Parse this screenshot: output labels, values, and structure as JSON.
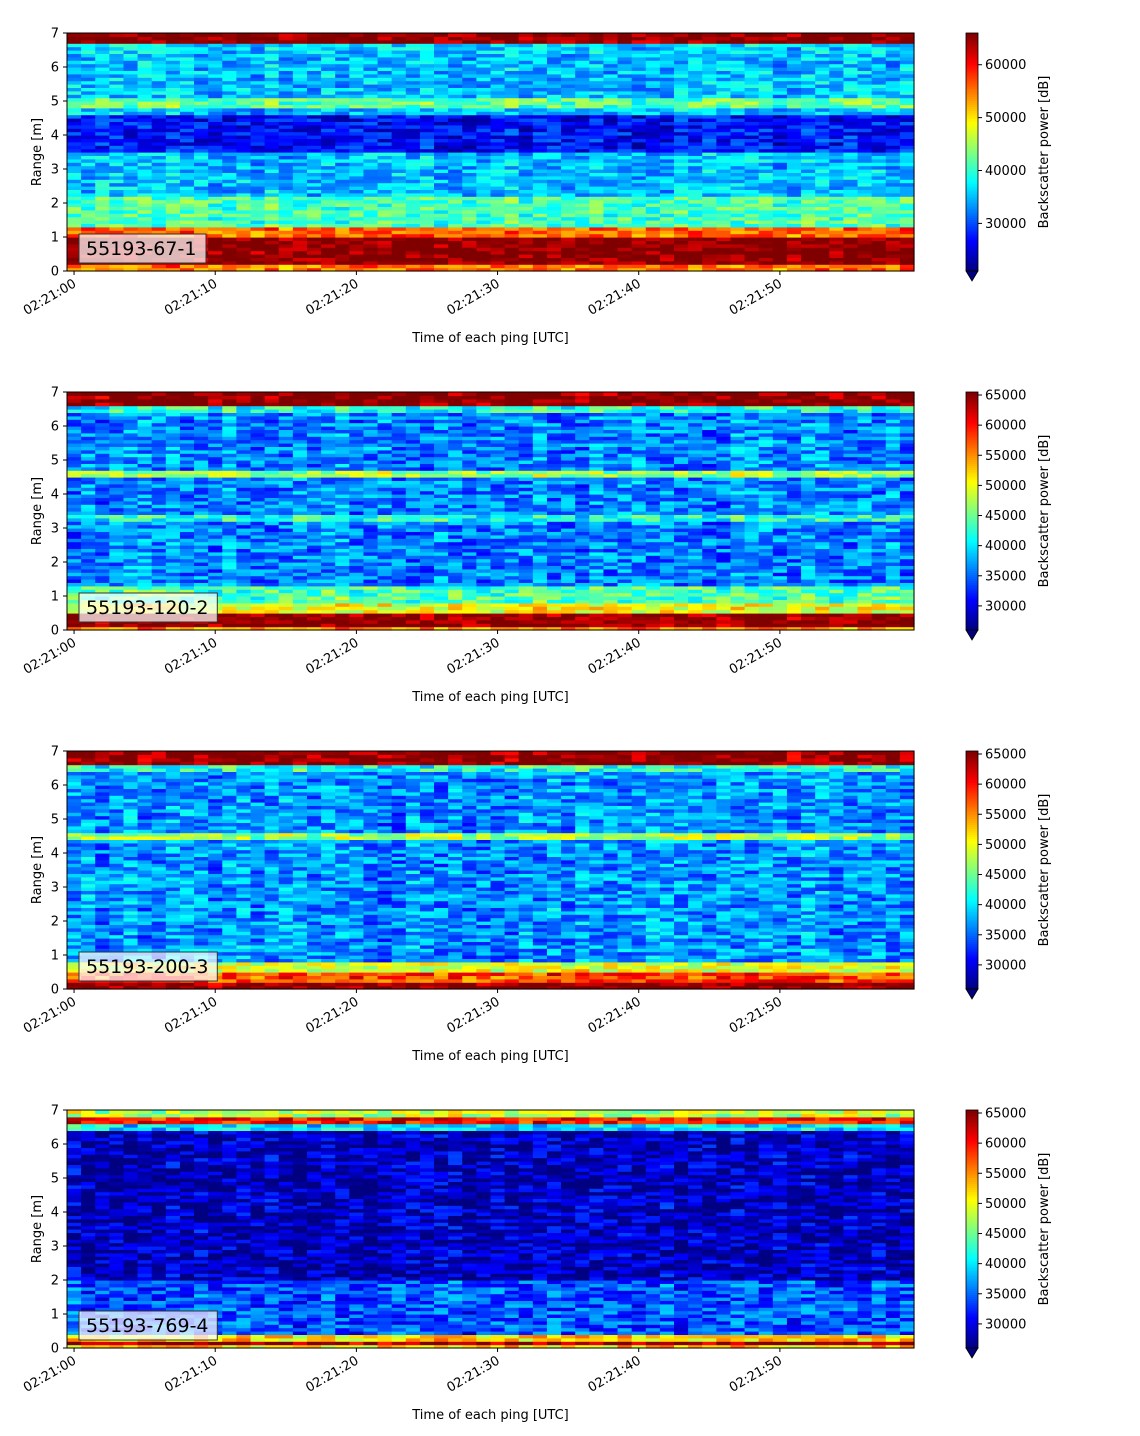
{
  "chart_data": [
    {
      "type": "heatmap",
      "label": "55193-67-1",
      "xlabel": "Time of each ping [UTC]",
      "ylabel": "Range [m]",
      "colorbar_label": "Backscatter power [dB]",
      "x_range": [
        "02:20:59.5",
        "02:21:59.5"
      ],
      "x_ticks": [
        "02:21:00",
        "02:21:10",
        "02:21:20",
        "02:21:30",
        "02:21:40",
        "02:21:50"
      ],
      "y_range": [
        0,
        7
      ],
      "y_ticks": [
        "0",
        "1",
        "2",
        "3",
        "4",
        "5",
        "6",
        "7"
      ],
      "colorbar_range": [
        21000,
        66000
      ],
      "colorbar_ticks": [
        "30000",
        "40000",
        "50000",
        "60000"
      ],
      "colorbar_tick_values": [
        30000,
        40000,
        50000,
        60000
      ],
      "colormap": "jet",
      "colorbar_extend": "min",
      "bands": [
        {
          "range": [
            6.7,
            7.0
          ],
          "level": 66000
        },
        {
          "range": [
            6.45,
            6.7
          ],
          "level": 36000
        },
        {
          "range": [
            4.8,
            5.1
          ],
          "level": 42000
        },
        {
          "range": [
            3.5,
            4.6
          ],
          "level": 27000
        },
        {
          "range": [
            1.3,
            2.2
          ],
          "level": 41000
        },
        {
          "range": [
            1.05,
            1.3
          ],
          "level": 56000
        },
        {
          "range": [
            0.25,
            1.05
          ],
          "level": 66000
        },
        {
          "range": [
            0.0,
            0.25
          ],
          "level": 55000
        }
      ],
      "background_level": 35000
    },
    {
      "type": "heatmap",
      "label": "55193-120-2",
      "xlabel": "Time of each ping [UTC]",
      "ylabel": "Range [m]",
      "colorbar_label": "Backscatter power [dB]",
      "x_range": [
        "02:20:59.5",
        "02:21:59.5"
      ],
      "x_ticks": [
        "02:21:00",
        "02:21:10",
        "02:21:20",
        "02:21:30",
        "02:21:40",
        "02:21:50"
      ],
      "y_range": [
        0,
        7
      ],
      "y_ticks": [
        "0",
        "1",
        "2",
        "3",
        "4",
        "5",
        "6",
        "7"
      ],
      "colorbar_range": [
        26000,
        65500
      ],
      "colorbar_ticks": [
        "30000",
        "35000",
        "40000",
        "45000",
        "50000",
        "55000",
        "60000",
        "65000"
      ],
      "colorbar_tick_values": [
        30000,
        35000,
        40000,
        45000,
        50000,
        55000,
        60000,
        65000
      ],
      "colormap": "jet",
      "colorbar_extend": "min",
      "bands": [
        {
          "range": [
            6.6,
            7.0
          ],
          "level": 65500
        },
        {
          "range": [
            6.4,
            6.6
          ],
          "level": 42000
        },
        {
          "range": [
            4.5,
            4.7
          ],
          "level": 47000
        },
        {
          "range": [
            3.2,
            3.4
          ],
          "level": 42000
        },
        {
          "range": [
            0.8,
            1.3
          ],
          "level": 44000
        },
        {
          "range": [
            0.55,
            0.8
          ],
          "level": 50000
        },
        {
          "range": [
            0.1,
            0.55
          ],
          "level": 65500
        },
        {
          "range": [
            0.0,
            0.1
          ],
          "level": 55000
        }
      ],
      "background_level": 36000
    },
    {
      "type": "heatmap",
      "label": "55193-200-3",
      "xlabel": "Time of each ping [UTC]",
      "ylabel": "Range [m]",
      "colorbar_label": "Backscatter power [dB]",
      "x_range": [
        "02:20:59.5",
        "02:21:59.5"
      ],
      "x_ticks": [
        "02:21:00",
        "02:21:10",
        "02:21:20",
        "02:21:30",
        "02:21:40",
        "02:21:50"
      ],
      "y_range": [
        0,
        7
      ],
      "y_ticks": [
        "0",
        "1",
        "2",
        "3",
        "4",
        "5",
        "6",
        "7"
      ],
      "colorbar_range": [
        26000,
        65500
      ],
      "colorbar_ticks": [
        "30000",
        "35000",
        "40000",
        "45000",
        "50000",
        "55000",
        "60000",
        "65000"
      ],
      "colorbar_tick_values": [
        30000,
        35000,
        40000,
        45000,
        50000,
        55000,
        60000,
        65000
      ],
      "colormap": "jet",
      "colorbar_extend": "min",
      "bands": [
        {
          "range": [
            6.6,
            7.0
          ],
          "level": 65000
        },
        {
          "range": [
            6.4,
            6.6
          ],
          "level": 42000
        },
        {
          "range": [
            4.45,
            4.65
          ],
          "level": 47000
        },
        {
          "range": [
            0.5,
            0.8
          ],
          "level": 50000
        },
        {
          "range": [
            0.25,
            0.5
          ],
          "level": 58000
        },
        {
          "range": [
            0.0,
            0.25
          ],
          "level": 65500
        }
      ],
      "background_level": 36500
    },
    {
      "type": "heatmap",
      "label": "55193-769-4",
      "xlabel": "Time of each ping [UTC]",
      "ylabel": "Range [m]",
      "colorbar_label": "Backscatter power [dB]",
      "x_range": [
        "02:20:59.5",
        "02:21:59.5"
      ],
      "x_ticks": [
        "02:21:00",
        "02:21:10",
        "02:21:20",
        "02:21:30",
        "02:21:40",
        "02:21:50"
      ],
      "y_range": [
        0,
        7
      ],
      "y_ticks": [
        "0",
        "1",
        "2",
        "3",
        "4",
        "5",
        "6",
        "7"
      ],
      "colorbar_range": [
        26000,
        65500
      ],
      "colorbar_ticks": [
        "30000",
        "35000",
        "40000",
        "45000",
        "50000",
        "55000",
        "60000",
        "65000"
      ],
      "colorbar_tick_values": [
        30000,
        35000,
        40000,
        45000,
        50000,
        55000,
        60000,
        65000
      ],
      "colormap": "jet",
      "colorbar_extend": "min",
      "bands": [
        {
          "range": [
            6.85,
            7.0
          ],
          "level": 48000
        },
        {
          "range": [
            6.6,
            6.85
          ],
          "level": 60000
        },
        {
          "range": [
            6.4,
            6.6
          ],
          "level": 40000
        },
        {
          "range": [
            2.0,
            6.4
          ],
          "level": 28500
        },
        {
          "range": [
            0.4,
            2.0
          ],
          "level": 34000
        },
        {
          "range": [
            0.25,
            0.4
          ],
          "level": 52000
        },
        {
          "range": [
            0.12,
            0.25
          ],
          "level": 64000
        },
        {
          "range": [
            0.0,
            0.12
          ],
          "level": 52000
        }
      ],
      "background_level": 30000
    }
  ]
}
